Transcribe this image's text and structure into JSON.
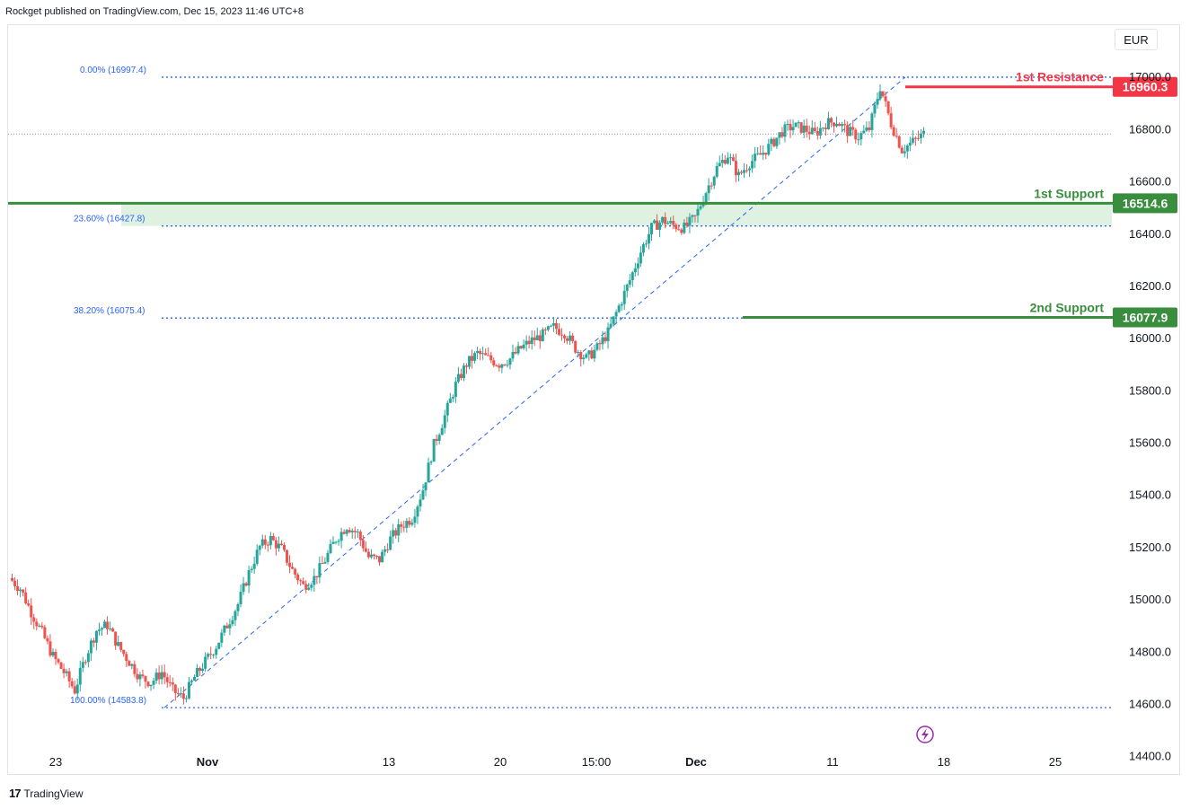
{
  "header": {
    "text": "Rockget published on TradingView.com, Dec 15, 2023 11:46 UTC+8"
  },
  "footer": {
    "logo": "17",
    "text": "TradingView"
  },
  "currency": "EUR",
  "colors": {
    "up": "#26a69a",
    "down": "#ef5350",
    "resistance": "#f23645",
    "support": "#388e3c",
    "fib": "#2962ff"
  },
  "chart_data": {
    "type": "candlestick",
    "y_range": [
      14330,
      17200
    ],
    "y_ticks": [
      "14400.0",
      "14600.0",
      "14800.0",
      "15000.0",
      "15200.0",
      "15400.0",
      "15600.0",
      "15800.0",
      "16000.0",
      "16200.0",
      "16400.0",
      "16600.0",
      "16800.0",
      "17000.0"
    ],
    "x_ticks": [
      {
        "label": "23",
        "bold": false
      },
      {
        "label": "Nov",
        "bold": true
      },
      {
        "label": "13",
        "bold": false
      },
      {
        "label": "20",
        "bold": false
      },
      {
        "label": "15:00",
        "bold": false
      },
      {
        "label": "Dec",
        "bold": true
      },
      {
        "label": "11",
        "bold": false
      },
      {
        "label": "18",
        "bold": false
      },
      {
        "label": "25",
        "bold": false
      }
    ],
    "price_path": [
      15080,
      15040,
      14950,
      14870,
      14780,
      14720,
      14650,
      14780,
      14880,
      14900,
      14820,
      14760,
      14700,
      14680,
      14720,
      14650,
      14620,
      14700,
      14760,
      14820,
      14900,
      14980,
      15100,
      15200,
      15230,
      15190,
      15110,
      15050,
      15080,
      15150,
      15230,
      15280,
      15250,
      15160,
      15150,
      15230,
      15280,
      15310,
      15420,
      15590,
      15700,
      15820,
      15900,
      15940,
      15920,
      15900,
      15920,
      15960,
      15990,
      16010,
      16040,
      16020,
      15960,
      15920,
      15960,
      16020,
      16120,
      16220,
      16330,
      16420,
      16450,
      16430,
      16420,
      16460,
      16560,
      16650,
      16700,
      16620,
      16670,
      16700,
      16740,
      16790,
      16810,
      16800,
      16780,
      16820,
      16830,
      16790,
      16770,
      16800,
      16960,
      16820,
      16720,
      16750,
      16780
    ],
    "fib_levels": [
      {
        "label": "0.00% (16997.4)",
        "price": 16997.4
      },
      {
        "label": "23.60% (16427.8)",
        "price": 16427.8
      },
      {
        "label": "38.20% (16075.4)",
        "price": 16075.4
      },
      {
        "label": "100.00% (14583.8)",
        "price": 14583.8
      }
    ],
    "levels": [
      {
        "name": "1st Resistance",
        "price": 16960.3,
        "tag": "16960.3",
        "kind": "resistance"
      },
      {
        "name": "1st Support",
        "price": 16514.6,
        "tag": "16514.6",
        "kind": "support"
      },
      {
        "name": "2nd Support",
        "price": 16077.9,
        "tag": "16077.9",
        "kind": "support"
      }
    ],
    "last_price_line": 16780
  }
}
